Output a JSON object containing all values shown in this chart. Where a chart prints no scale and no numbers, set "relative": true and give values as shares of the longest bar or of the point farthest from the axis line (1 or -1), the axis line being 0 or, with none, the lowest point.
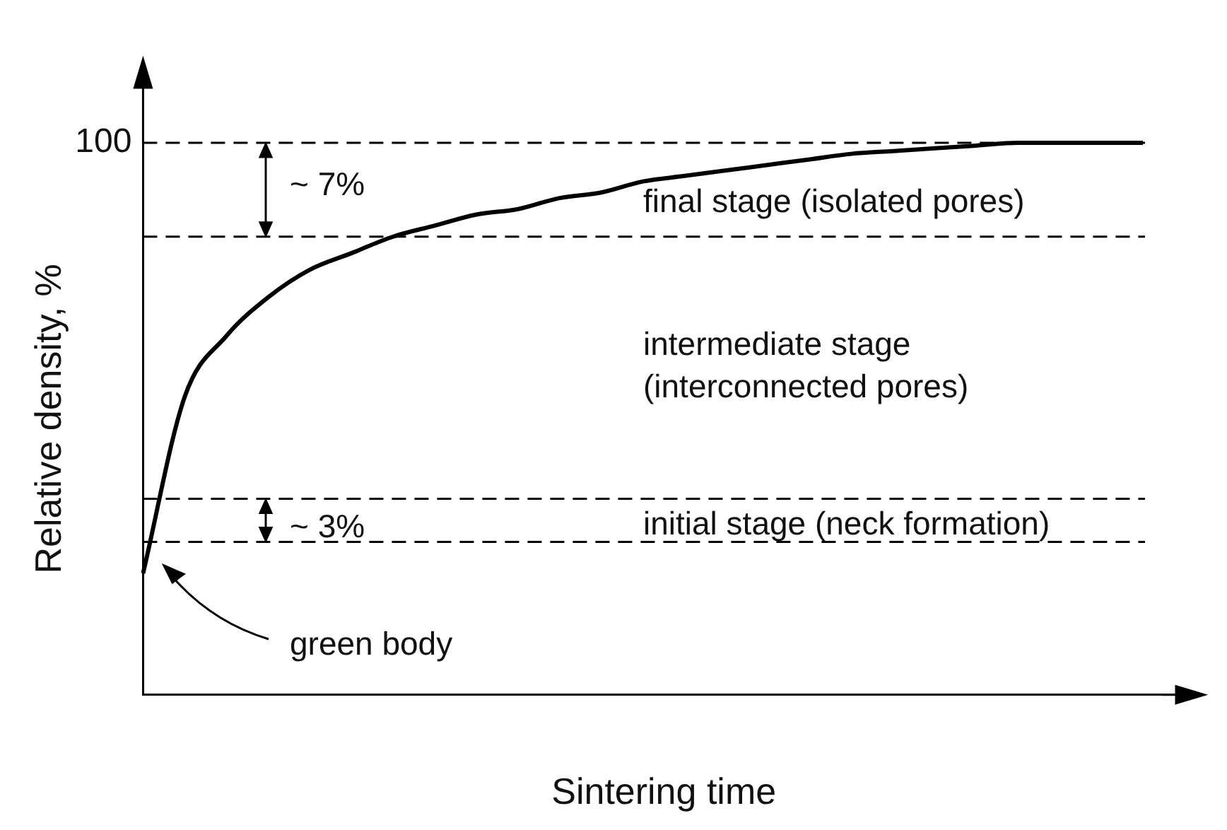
{
  "chart_data": {
    "type": "line",
    "relative": true,
    "xlabel": "Sintering time",
    "ylabel": "Relative density, %",
    "categories": [
      null,
      null,
      null,
      null,
      null,
      null,
      null,
      null,
      null,
      null,
      null,
      null,
      null,
      null,
      null,
      null,
      null,
      null,
      null,
      null,
      null,
      null,
      null,
      null,
      null,
      null
    ],
    "series": [
      {
        "color": "#000000",
        "values": [
          0.22,
          0.54,
          0.65,
          0.72,
          0.77,
          0.8,
          0.83,
          0.85,
          0.87,
          0.88,
          0.9,
          0.91,
          0.93,
          0.94,
          0.95,
          0.96,
          0.97,
          0.98,
          0.985,
          0.99,
          0.995,
          1,
          1,
          1,
          1,
          null
        ]
      }
    ],
    "ref_lines": [
      {
        "axis": "y",
        "value": 1,
        "label": "100",
        "line_style": "dashed",
        "color": "#000000"
      },
      {
        "axis": "y",
        "value": 0.83,
        "line_style": "dashed",
        "color": "#000000"
      },
      {
        "axis": "y",
        "value": 0.355,
        "line_style": "dashed",
        "color": "#000000"
      },
      {
        "axis": "y",
        "value": 0.277,
        "line_style": "dashed",
        "color": "#000000"
      }
    ],
    "annotations": [
      "~ 7%",
      "final stage (isolated pores)",
      "intermediate stage\n(interconnected pores)",
      "~ 3%",
      "initial stage (neck formation)",
      "green body"
    ],
    "marker": "none",
    "line_style": "solid",
    "grid": false,
    "legend": false
  }
}
